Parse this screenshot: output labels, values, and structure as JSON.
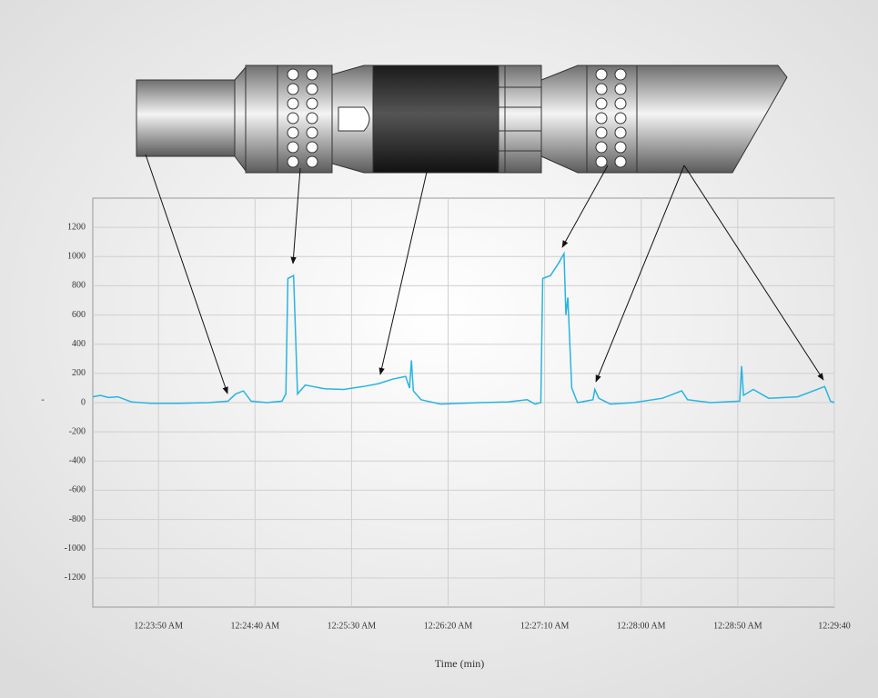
{
  "chart_data": {
    "type": "line",
    "xlabel": "Time (min)",
    "ylabel": "-",
    "color": "#29b4e0",
    "grid": true,
    "xlim": [
      "12:23:16 AM",
      "12:29:40 AM"
    ],
    "xticks": [
      "12:23:50 AM",
      "12:24:40 AM",
      "12:25:30 AM",
      "12:26:20 AM",
      "12:27:10 AM",
      "12:28:00 AM",
      "12:28:50 AM",
      {
        "value": "12:29:40 AM",
        "label": "12:29:40"
      }
    ],
    "ylim": [
      -1400,
      1400
    ],
    "yticks": [
      1200,
      1000,
      800,
      600,
      400,
      200,
      0,
      -200,
      -400,
      -600,
      -800,
      -1000,
      -1200
    ],
    "x": [
      "12:23:16 AM",
      "12:23:20 AM",
      "12:23:24 AM",
      "12:23:29 AM",
      "12:23:36 AM",
      "12:23:46 AM",
      "12:24:01 AM",
      "12:24:16 AM",
      "12:24:26 AM",
      "12:24:30 AM",
      "12:24:34 AM",
      "12:24:38 AM",
      "12:24:46 AM",
      "12:24:54 AM",
      "12:24:56 AM",
      "12:24:57 AM",
      "12:25:00 AM",
      "12:25:02 AM",
      "12:25:06 AM",
      "12:25:16 AM",
      "12:25:26 AM",
      "12:25:36 AM",
      "12:25:44 AM",
      "12:25:51 AM",
      "12:25:58 AM",
      "12:26:00 AM",
      "12:26:01 AM",
      "12:26:02 AM",
      "12:26:06 AM",
      "12:26:16 AM",
      "12:26:36 AM",
      "12:26:51 AM",
      "12:27:01 AM",
      "12:27:05 AM",
      "12:27:08 AM",
      "12:27:09 AM",
      "12:27:13 AM",
      "12:27:17 AM",
      "12:27:20 AM",
      "12:27:21 AM",
      "12:27:22 AM",
      "12:27:24 AM",
      "12:27:27 AM",
      "12:27:35 AM",
      "12:27:36 AM",
      "12:27:38 AM",
      "12:27:44 AM",
      "12:27:56 AM",
      "12:28:11 AM",
      "12:28:21 AM",
      "12:28:24 AM",
      "12:28:36 AM",
      "12:28:51 AM",
      "12:28:52 AM",
      "12:28:53 AM",
      "12:28:58 AM",
      "12:29:06 AM",
      "12:29:21 AM",
      "12:29:35 AM",
      "12:29:38 AM",
      "12:29:40 AM"
    ],
    "values": [
      40,
      50,
      35,
      40,
      5,
      -5,
      -5,
      0,
      10,
      60,
      80,
      10,
      0,
      10,
      60,
      850,
      870,
      60,
      120,
      95,
      90,
      110,
      130,
      160,
      180,
      100,
      290,
      80,
      20,
      -10,
      0,
      5,
      20,
      -10,
      0,
      850,
      870,
      950,
      1020,
      600,
      720,
      100,
      0,
      20,
      90,
      30,
      -10,
      0,
      30,
      80,
      20,
      0,
      10,
      250,
      50,
      90,
      30,
      40,
      110,
      10,
      0
    ]
  }
}
